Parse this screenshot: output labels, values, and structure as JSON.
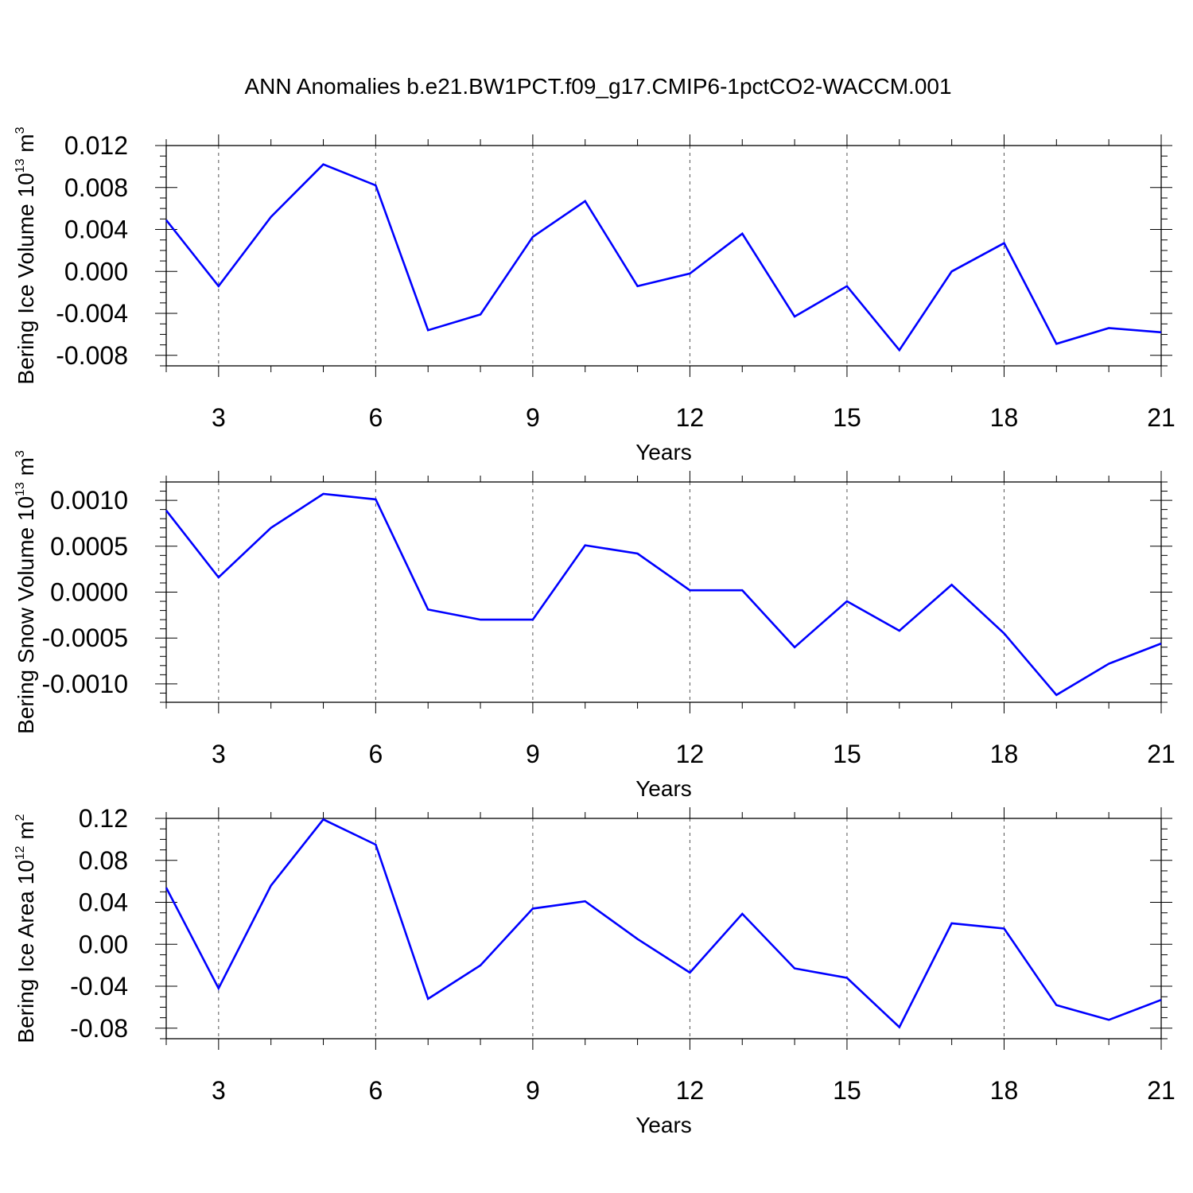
{
  "figure": {
    "title": "ANN Anomalies b.e21.BW1PCT.f09_g17.CMIP6-1pctCO2-WACCM.001"
  },
  "colors": {
    "line": "#0000ff",
    "axis": "#000000",
    "grid": "#555555"
  },
  "chart_data": [
    {
      "type": "line",
      "ylabel": "Bering Ice Volume 10",
      "ylabel_exp": "13",
      "ylabel_unit": " m",
      "ylabel_unit_exp": "3",
      "xlabel": "Years",
      "xlim": [
        2,
        21
      ],
      "ylim": [
        -0.009,
        0.012
      ],
      "xticks": [
        3,
        6,
        9,
        12,
        15,
        18,
        21
      ],
      "xticklabels": [
        "3",
        "6",
        "9",
        "12",
        "15",
        "18",
        "21"
      ],
      "yticks": [
        0.012,
        0.008,
        0.004,
        0.0,
        -0.004,
        -0.008
      ],
      "yticklabels": [
        "0.012",
        "0.008",
        "0.004",
        "0.000",
        "-0.004",
        "-0.008"
      ],
      "yminor_step": 0.001,
      "grid": "x-dashed",
      "series": [
        {
          "x": [
            2,
            3,
            4,
            5,
            6,
            7,
            8,
            9,
            10,
            11,
            12,
            13,
            14,
            15,
            16,
            17,
            18,
            19,
            20,
            21
          ],
          "values": [
            0.0049,
            -0.0014,
            0.0052,
            0.0102,
            0.0082,
            -0.0056,
            -0.0041,
            0.0033,
            0.0067,
            -0.0014,
            -0.0002,
            0.0036,
            -0.0043,
            -0.0014,
            -0.0075,
            0.0,
            0.0027,
            -0.0069,
            -0.0054,
            -0.0058
          ]
        }
      ]
    },
    {
      "type": "line",
      "ylabel": "Bering Snow Volume 10",
      "ylabel_exp": "13",
      "ylabel_unit": " m",
      "ylabel_unit_exp": "3",
      "xlabel": "Years",
      "xlim": [
        2,
        21
      ],
      "ylim": [
        -0.0012,
        0.0012
      ],
      "xticks": [
        3,
        6,
        9,
        12,
        15,
        18,
        21
      ],
      "xticklabels": [
        "3",
        "6",
        "9",
        "12",
        "15",
        "18",
        "21"
      ],
      "yticks": [
        0.001,
        0.0005,
        0.0,
        -0.0005,
        -0.001
      ],
      "yticklabels": [
        "0.0010",
        "0.0005",
        "0.0000",
        "-0.0005",
        "-0.0010"
      ],
      "yminor_step": 0.0001,
      "grid": "x-dashed",
      "series": [
        {
          "x": [
            2,
            3,
            4,
            5,
            6,
            7,
            8,
            9,
            10,
            11,
            12,
            13,
            14,
            15,
            16,
            17,
            18,
            19,
            20,
            21
          ],
          "values": [
            0.00089,
            0.00016,
            0.0007,
            0.00107,
            0.00101,
            -0.00019,
            -0.0003,
            -0.0003,
            0.00051,
            0.00042,
            2e-05,
            2e-05,
            -0.0006,
            -0.0001,
            -0.00042,
            8e-05,
            -0.00045,
            -0.00112,
            -0.00078,
            -0.00056
          ]
        }
      ]
    },
    {
      "type": "line",
      "ylabel": "Bering Ice Area 10",
      "ylabel_exp": "12",
      "ylabel_unit": " m",
      "ylabel_unit_exp": "2",
      "xlabel": "Years",
      "xlim": [
        2,
        21
      ],
      "ylim": [
        -0.09,
        0.12
      ],
      "xticks": [
        3,
        6,
        9,
        12,
        15,
        18,
        21
      ],
      "xticklabels": [
        "3",
        "6",
        "9",
        "12",
        "15",
        "18",
        "21"
      ],
      "yticks": [
        0.12,
        0.08,
        0.04,
        0.0,
        -0.04,
        -0.08
      ],
      "yticklabels": [
        "0.12",
        "0.08",
        "0.04",
        "0.00",
        "-0.04",
        "-0.08"
      ],
      "yminor_step": 0.01,
      "grid": "x-dashed",
      "series": [
        {
          "x": [
            2,
            3,
            4,
            5,
            6,
            7,
            8,
            9,
            10,
            11,
            12,
            13,
            14,
            15,
            16,
            17,
            18,
            19,
            20,
            21
          ],
          "values": [
            0.054,
            -0.042,
            0.056,
            0.119,
            0.095,
            -0.052,
            -0.02,
            0.034,
            0.041,
            0.005,
            -0.027,
            0.029,
            -0.023,
            -0.032,
            -0.079,
            0.02,
            0.015,
            -0.058,
            -0.072,
            -0.053
          ]
        }
      ]
    }
  ]
}
